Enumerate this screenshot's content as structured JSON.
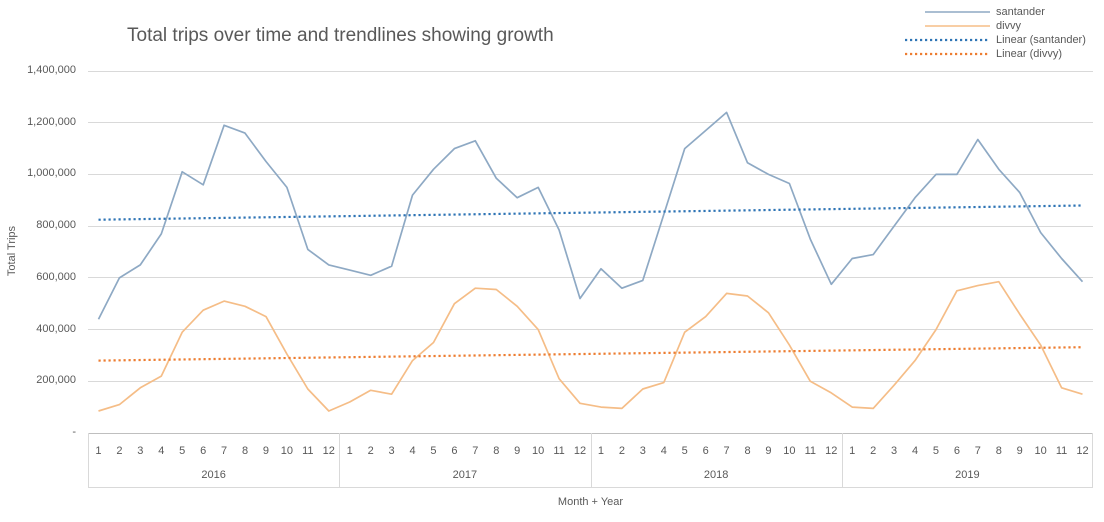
{
  "title": "Total trips over time and trendlines showing growth",
  "legend": [
    {
      "label": "santander",
      "color": "#8EA9C4",
      "dash": "none",
      "sample_start": 20
    },
    {
      "label": "divvy",
      "color": "#F5BD87",
      "dash": "none",
      "sample_start": 20
    },
    {
      "label": "Linear (santander)",
      "color": "#2E74B5",
      "dash": "dotted",
      "sample_start": 0
    },
    {
      "label": "Linear (divvy)",
      "color": "#ED7D31",
      "dash": "dotted",
      "sample_start": 0
    }
  ],
  "colors": {
    "santander_line": "#8EA9C4",
    "divvy_line": "#F5BD87",
    "santander_trend": "#2E74B5",
    "divvy_trend": "#ED7D31",
    "gridline": "#d9d9d9",
    "axis_text": "#595959"
  },
  "chart_data": {
    "type": "line",
    "title": "Total trips over time and trendlines showing growth",
    "xlabel": "Month + Year",
    "ylabel": "Total Trips",
    "ylim": [
      0,
      1400000
    ],
    "y_tick_interval": 200000,
    "y_tick_labels": [
      "-",
      "200,000",
      "400,000",
      "600,000",
      "800,000",
      "1,000,000",
      "1,200,000",
      "1,400,000"
    ],
    "grid": "horizontal",
    "legend_position": "top-right",
    "years": [
      "2016",
      "2017",
      "2018",
      "2019"
    ],
    "month_labels": [
      "1",
      "2",
      "3",
      "4",
      "5",
      "6",
      "7",
      "8",
      "9",
      "10",
      "11",
      "12"
    ],
    "series": [
      {
        "name": "santander",
        "style": "solid",
        "values": [
          440000,
          600000,
          650000,
          770000,
          1010000,
          960000,
          1190000,
          1160000,
          1050000,
          950000,
          710000,
          650000,
          630000,
          610000,
          645000,
          920000,
          1020000,
          1100000,
          1130000,
          985000,
          910000,
          950000,
          785000,
          520000,
          635000,
          560000,
          590000,
          845000,
          1100000,
          1170000,
          1240000,
          1045000,
          1000000,
          965000,
          750000,
          575000,
          675000,
          690000,
          800000,
          910000,
          1000000,
          1000000,
          1135000,
          1020000,
          930000,
          775000,
          675000,
          585000
        ]
      },
      {
        "name": "divvy",
        "style": "solid",
        "values": [
          85000,
          110000,
          175000,
          220000,
          390000,
          475000,
          510000,
          490000,
          450000,
          305000,
          170000,
          85000,
          120000,
          165000,
          150000,
          280000,
          350000,
          500000,
          560000,
          555000,
          490000,
          400000,
          210000,
          115000,
          100000,
          95000,
          170000,
          195000,
          390000,
          450000,
          540000,
          530000,
          465000,
          340000,
          200000,
          155000,
          100000,
          95000,
          185000,
          280000,
          400000,
          550000,
          570000,
          585000,
          460000,
          340000,
          175000,
          150000
        ]
      }
    ],
    "trendlines": [
      {
        "name": "Linear (santander)",
        "style": "dotted",
        "start_value": 825000,
        "end_value": 880000
      },
      {
        "name": "Linear (divvy)",
        "style": "dotted",
        "start_value": 280000,
        "end_value": 332000
      }
    ]
  }
}
